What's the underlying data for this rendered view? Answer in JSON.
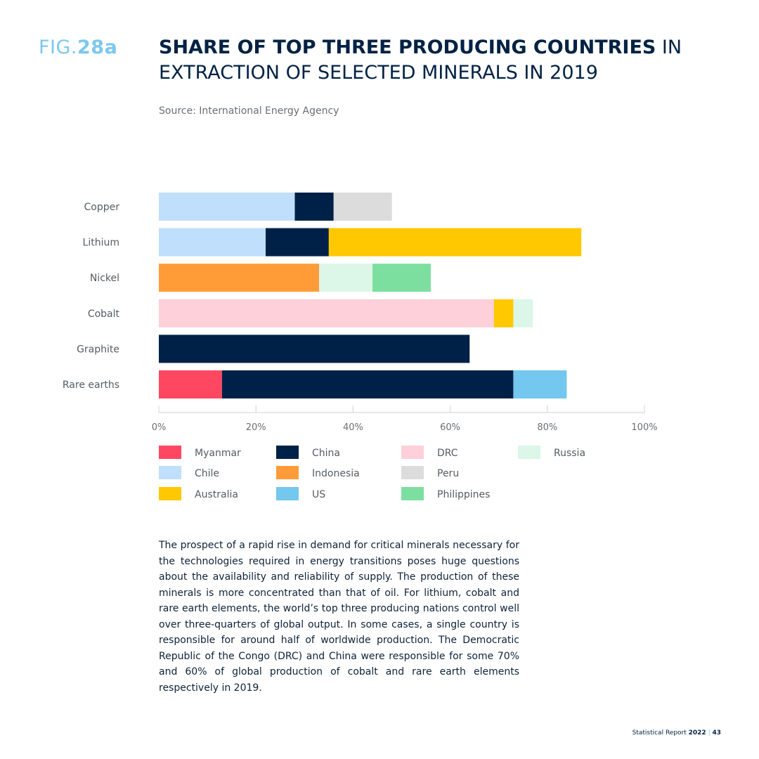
{
  "header": {
    "fig_prefix": "FIG.",
    "fig_number": "28a",
    "title_bold": "SHARE OF TOP THREE PRODUCING COUNTRIES",
    "title_rest": " IN EXTRACTION OF SELECTED MINERALS IN 2019",
    "source": "Source: International Energy Agency"
  },
  "colors": {
    "Myanmar": "#ff4762",
    "Chile": "#bfdffc",
    "Australia": "#ffc800",
    "China": "#002147",
    "Indonesia": "#ff9c38",
    "US": "#74c7ef",
    "DRC": "#fed0d9",
    "Peru": "#dcdcdc",
    "Philippines": "#7ddf9f",
    "Russia": "#dcf6e7"
  },
  "chart_data": {
    "type": "bar",
    "orientation": "horizontal",
    "stacked": true,
    "categories": [
      "Copper",
      "Lithium",
      "Nickel",
      "Cobalt",
      "Graphite",
      "Rare earths"
    ],
    "stacks": [
      [
        {
          "country": "Chile",
          "value": 28
        },
        {
          "country": "China",
          "value": 8
        },
        {
          "country": "Peru",
          "value": 12
        }
      ],
      [
        {
          "country": "Chile",
          "value": 22
        },
        {
          "country": "China",
          "value": 13
        },
        {
          "country": "Australia",
          "value": 52
        }
      ],
      [
        {
          "country": "Indonesia",
          "value": 33
        },
        {
          "country": "Russia",
          "value": 11
        },
        {
          "country": "Philippines",
          "value": 12
        }
      ],
      [
        {
          "country": "DRC",
          "value": 69
        },
        {
          "country": "Australia",
          "value": 4
        },
        {
          "country": "Russia",
          "value": 4
        }
      ],
      [
        {
          "country": "China",
          "value": 64
        }
      ],
      [
        {
          "country": "Myanmar",
          "value": 13
        },
        {
          "country": "China",
          "value": 60
        },
        {
          "country": "US",
          "value": 11
        }
      ]
    ],
    "xlim": [
      0,
      100
    ],
    "xticks": [
      "0%",
      "20%",
      "40%",
      "60%",
      "80%",
      "100%"
    ],
    "legend": [
      [
        "Myanmar",
        "Chile",
        "Australia"
      ],
      [
        "China",
        "Indonesia",
        "US"
      ],
      [
        "DRC",
        "Peru",
        "Philippines"
      ],
      [
        "Russia"
      ]
    ],
    "legend_placement": "bottom"
  },
  "body_text": "The prospect of a rapid rise in demand for critical minerals necessary for the technologies required in energy transitions poses huge questions about the availability and reliability of supply. The production of these minerals is more concentrated than that of oil. For lithium, cobalt and rare earth elements, the world’s top three producing nations control well over three-quarters of global output. In some cases, a single country is responsible for around half of worldwide production. The Democratic Republic of the Congo (DRC) and China were responsible for some 70% and 60% of global production of cobalt and rare earth elements respectively in 2019.",
  "footer": {
    "report": "Statistical Report ",
    "year": "2022",
    "separator": " | ",
    "page": "43"
  }
}
